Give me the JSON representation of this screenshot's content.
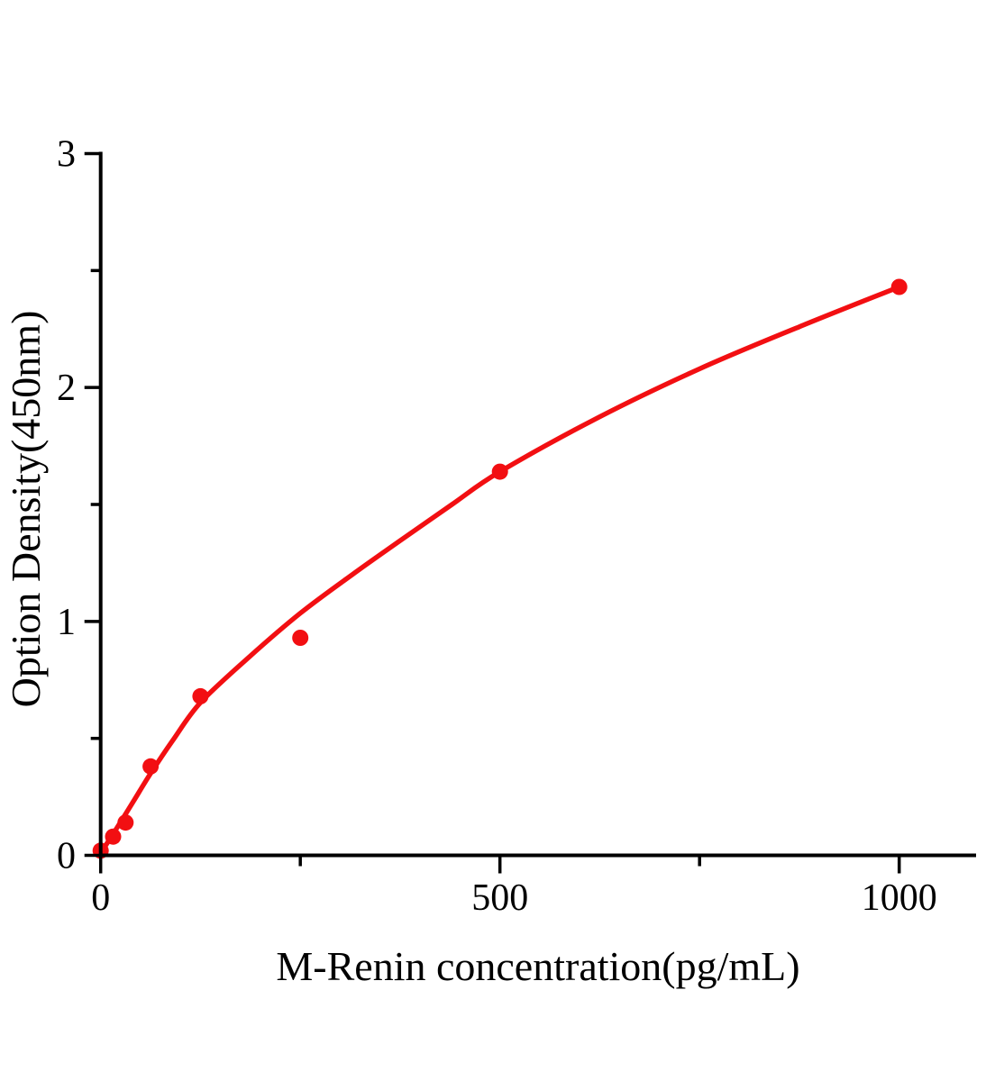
{
  "page": {
    "background_color": "#ffffff"
  },
  "chart_data": {
    "type": "scatter",
    "title": "",
    "xlabel": "M-Renin concentration(pg/mL)",
    "ylabel": "Option Density(450nm)",
    "xlim": [
      0,
      1095
    ],
    "ylim": [
      0,
      3
    ],
    "grid": false,
    "legend": "none",
    "axis_color": "#000000",
    "accent_color": "#f20f12",
    "x_axis": {
      "major_ticks": [
        0,
        500,
        1000
      ],
      "major_tick_labels": [
        "0",
        "500",
        "1000"
      ],
      "minor_ticks": [
        250,
        750
      ]
    },
    "y_axis": {
      "major_ticks": [
        0,
        1,
        2,
        3
      ],
      "major_tick_labels": [
        "0",
        "1",
        "2",
        "3"
      ],
      "minor_ticks": [
        0.5,
        1.5,
        2.5
      ]
    },
    "series": [
      {
        "name": "standard-points",
        "type": "scatter",
        "marker": "circle",
        "color": "#f20f12",
        "x": [
          0,
          15.6,
          31.2,
          62.5,
          125,
          250,
          500,
          1000
        ],
        "y": [
          0.02,
          0.08,
          0.14,
          0.38,
          0.68,
          0.93,
          1.64,
          2.43
        ]
      },
      {
        "name": "fit-curve",
        "type": "line",
        "color": "#f20f12",
        "x": [
          0,
          20,
          40,
          62.5,
          90,
          125,
          185,
          250,
          315,
          375,
          440,
          500,
          625,
          750,
          875,
          1000
        ],
        "y": [
          0.01,
          0.115,
          0.225,
          0.35,
          0.49,
          0.653,
          0.845,
          1.035,
          1.2,
          1.345,
          1.5,
          1.64,
          1.875,
          2.08,
          2.26,
          2.43
        ]
      }
    ]
  }
}
